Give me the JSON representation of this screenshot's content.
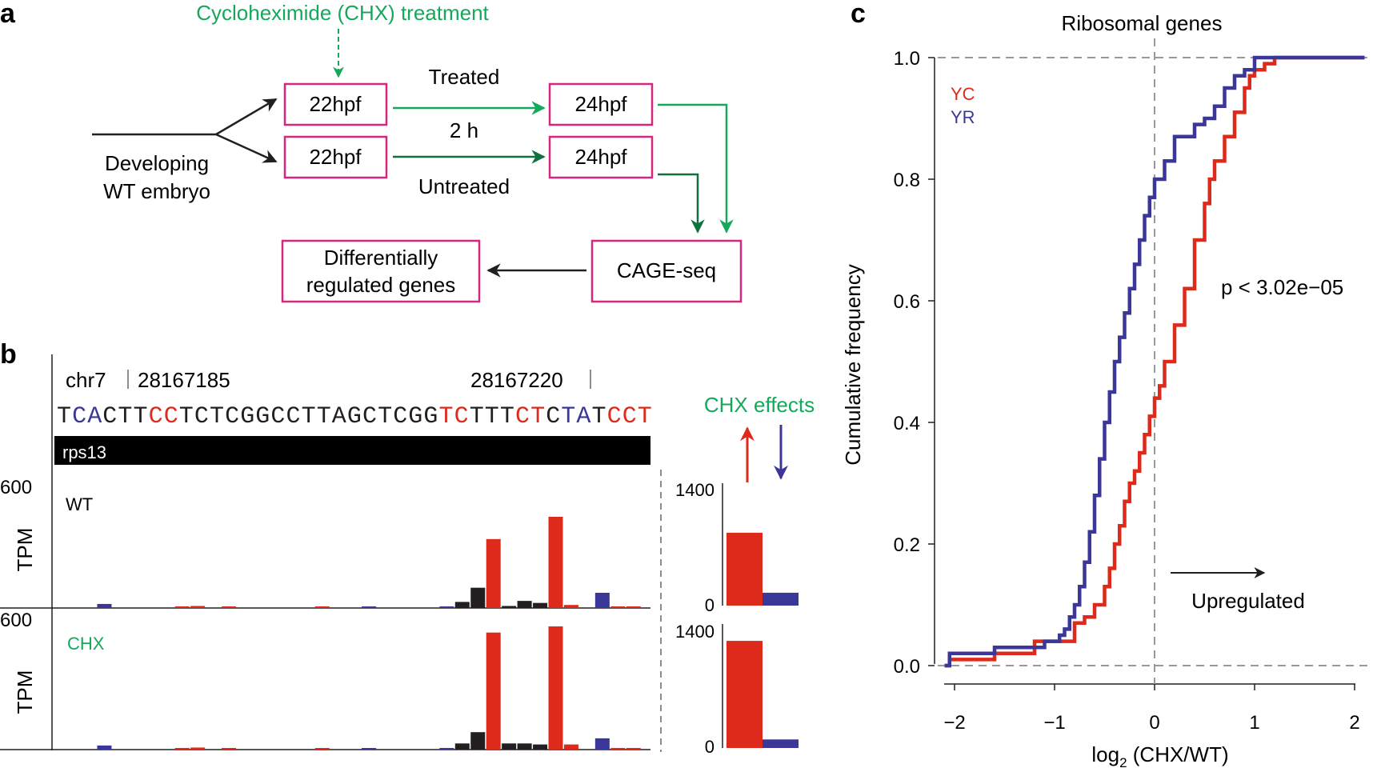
{
  "colors": {
    "magenta": "#d6267d",
    "green_light": "#16a85a",
    "green_dark": "#10713d",
    "red": "#dd2a1b",
    "blue": "#3b3798",
    "black": "#231f20",
    "gray": "#8c8c8c"
  },
  "panel_a": {
    "label": "a",
    "treatment": "Cycloheximide (CHX) treatment",
    "source_line1": "Developing",
    "source_line2": "WT embryo",
    "box_treated_22": "22hpf",
    "box_untreated_22": "22hpf",
    "box_treated_24": "24hpf",
    "box_untreated_24": "24hpf",
    "treated_label": "Treated",
    "duration_label": "2 h",
    "untreated_label": "Untreated",
    "cage": "CAGE-seq",
    "result_line1": "Differentially",
    "result_line2": "regulated genes"
  },
  "panel_b": {
    "label": "b",
    "chrom": "chr7",
    "pos1": "28167185",
    "pos2": "28167220",
    "sequence": [
      {
        "base": "T",
        "color": "black"
      },
      {
        "base": "C",
        "color": "blue"
      },
      {
        "base": "A",
        "color": "blue"
      },
      {
        "base": "C",
        "color": "black"
      },
      {
        "base": "T",
        "color": "black"
      },
      {
        "base": "T",
        "color": "black"
      },
      {
        "base": "C",
        "color": "red"
      },
      {
        "base": "C",
        "color": "red"
      },
      {
        "base": "T",
        "color": "black"
      },
      {
        "base": "C",
        "color": "black"
      },
      {
        "base": "T",
        "color": "black"
      },
      {
        "base": "C",
        "color": "black"
      },
      {
        "base": "G",
        "color": "black"
      },
      {
        "base": "G",
        "color": "black"
      },
      {
        "base": "C",
        "color": "black"
      },
      {
        "base": "C",
        "color": "black"
      },
      {
        "base": "T",
        "color": "black"
      },
      {
        "base": "T",
        "color": "black"
      },
      {
        "base": "A",
        "color": "black"
      },
      {
        "base": "G",
        "color": "black"
      },
      {
        "base": "C",
        "color": "black"
      },
      {
        "base": "T",
        "color": "black"
      },
      {
        "base": "C",
        "color": "black"
      },
      {
        "base": "G",
        "color": "black"
      },
      {
        "base": "G",
        "color": "black"
      },
      {
        "base": "T",
        "color": "red"
      },
      {
        "base": "C",
        "color": "red"
      },
      {
        "base": "T",
        "color": "black"
      },
      {
        "base": "T",
        "color": "black"
      },
      {
        "base": "T",
        "color": "black"
      },
      {
        "base": "C",
        "color": "red"
      },
      {
        "base": "T",
        "color": "red"
      },
      {
        "base": "C",
        "color": "black"
      },
      {
        "base": "T",
        "color": "blue"
      },
      {
        "base": "A",
        "color": "blue"
      },
      {
        "base": "T",
        "color": "black"
      },
      {
        "base": "C",
        "color": "red"
      },
      {
        "base": "C",
        "color": "red"
      },
      {
        "base": "T",
        "color": "red"
      }
    ],
    "gene": "rps13",
    "effects_title": "CHX effects",
    "track_ymax": "600",
    "ylabel": "TPM",
    "wt_label": "WT",
    "chx_label": "CHX",
    "inset_ymax": "1400",
    "inset_ymin": "0",
    "wt_bars": [
      {
        "pos": 1,
        "color": "blue",
        "value": 20
      },
      {
        "pos": 6,
        "color": "red",
        "value": 8
      },
      {
        "pos": 7,
        "color": "red",
        "value": 10
      },
      {
        "pos": 9,
        "color": "red",
        "value": 5
      },
      {
        "pos": 15,
        "color": "red",
        "value": 5
      },
      {
        "pos": 18,
        "color": "blue",
        "value": 5
      },
      {
        "pos": 23,
        "color": "blue",
        "value": 8
      },
      {
        "pos": 24,
        "color": "black",
        "value": 30
      },
      {
        "pos": 25,
        "color": "black",
        "value": 100
      },
      {
        "pos": 26,
        "color": "red",
        "value": 340
      },
      {
        "pos": 27,
        "color": "black",
        "value": 10
      },
      {
        "pos": 28,
        "color": "black",
        "value": 35
      },
      {
        "pos": 29,
        "color": "black",
        "value": 25
      },
      {
        "pos": 30,
        "color": "red",
        "value": 450
      },
      {
        "pos": 31,
        "color": "red",
        "value": 15
      },
      {
        "pos": 33,
        "color": "blue",
        "value": 75
      },
      {
        "pos": 34,
        "color": "red",
        "value": 8
      },
      {
        "pos": 35,
        "color": "red",
        "value": 8
      }
    ],
    "chx_bars": [
      {
        "pos": 1,
        "color": "blue",
        "value": 20
      },
      {
        "pos": 6,
        "color": "red",
        "value": 8
      },
      {
        "pos": 7,
        "color": "red",
        "value": 10
      },
      {
        "pos": 9,
        "color": "red",
        "value": 5
      },
      {
        "pos": 15,
        "color": "red",
        "value": 5
      },
      {
        "pos": 18,
        "color": "blue",
        "value": 5
      },
      {
        "pos": 23,
        "color": "blue",
        "value": 8
      },
      {
        "pos": 24,
        "color": "black",
        "value": 30
      },
      {
        "pos": 25,
        "color": "black",
        "value": 85
      },
      {
        "pos": 26,
        "color": "red",
        "value": 570
      },
      {
        "pos": 27,
        "color": "black",
        "value": 30
      },
      {
        "pos": 28,
        "color": "black",
        "value": 30
      },
      {
        "pos": 29,
        "color": "black",
        "value": 25
      },
      {
        "pos": 30,
        "color": "red",
        "value": 600
      },
      {
        "pos": 31,
        "color": "red",
        "value": 25
      },
      {
        "pos": 33,
        "color": "blue",
        "value": 55
      },
      {
        "pos": 34,
        "color": "red",
        "value": 8
      },
      {
        "pos": 35,
        "color": "red",
        "value": 8
      }
    ],
    "wt_inset": {
      "red": 850,
      "blue": 150
    },
    "chx_inset": {
      "red": 1250,
      "blue": 100
    }
  },
  "panel_c": {
    "label": "c",
    "chart_data": {
      "type": "line",
      "title": "Ribosomal genes",
      "xlabel": "log2 (CHX/WT)",
      "ylabel": "Cumulative frequency",
      "xlim": [
        -2.1,
        2.1
      ],
      "ylim": [
        0,
        1.0
      ],
      "xticks": [
        "−2",
        "−1",
        "0",
        "1",
        "2"
      ],
      "yticks": [
        "0.0",
        "0.2",
        "0.4",
        "0.6",
        "0.8",
        "1.0"
      ],
      "annotation": "p < 3.02e−05",
      "arrow_label": "Upregulated",
      "series": [
        {
          "name": "YC",
          "color": "#dd2a1b",
          "x": [
            -2.1,
            -2.05,
            -1.6,
            -1.2,
            -0.8,
            -0.7,
            -0.6,
            -0.5,
            -0.45,
            -0.4,
            -0.35,
            -0.3,
            -0.25,
            -0.2,
            -0.15,
            -0.1,
            -0.05,
            0.0,
            0.05,
            0.1,
            0.2,
            0.3,
            0.4,
            0.5,
            0.55,
            0.6,
            0.7,
            0.8,
            0.9,
            0.95,
            1.0,
            1.1,
            1.2,
            2.1
          ],
          "y": [
            0.0,
            0.01,
            0.02,
            0.04,
            0.07,
            0.08,
            0.1,
            0.13,
            0.16,
            0.2,
            0.23,
            0.27,
            0.3,
            0.32,
            0.35,
            0.38,
            0.41,
            0.44,
            0.46,
            0.5,
            0.56,
            0.62,
            0.7,
            0.76,
            0.8,
            0.83,
            0.87,
            0.91,
            0.95,
            0.97,
            0.98,
            0.99,
            1.0,
            1.0
          ]
        },
        {
          "name": "YR",
          "color": "#3b3798",
          "x": [
            -2.1,
            -2.05,
            -1.6,
            -1.1,
            -0.95,
            -0.9,
            -0.85,
            -0.8,
            -0.75,
            -0.7,
            -0.65,
            -0.6,
            -0.55,
            -0.5,
            -0.45,
            -0.4,
            -0.35,
            -0.3,
            -0.25,
            -0.2,
            -0.15,
            -0.1,
            -0.05,
            0.0,
            0.1,
            0.2,
            0.4,
            0.5,
            0.6,
            0.7,
            0.8,
            0.9,
            1.0,
            2.1
          ],
          "y": [
            0.0,
            0.02,
            0.03,
            0.04,
            0.05,
            0.06,
            0.08,
            0.1,
            0.13,
            0.17,
            0.22,
            0.28,
            0.34,
            0.4,
            0.45,
            0.5,
            0.54,
            0.58,
            0.62,
            0.66,
            0.7,
            0.74,
            0.77,
            0.8,
            0.83,
            0.87,
            0.89,
            0.9,
            0.92,
            0.95,
            0.97,
            0.98,
            1.0,
            1.0
          ]
        }
      ]
    }
  }
}
